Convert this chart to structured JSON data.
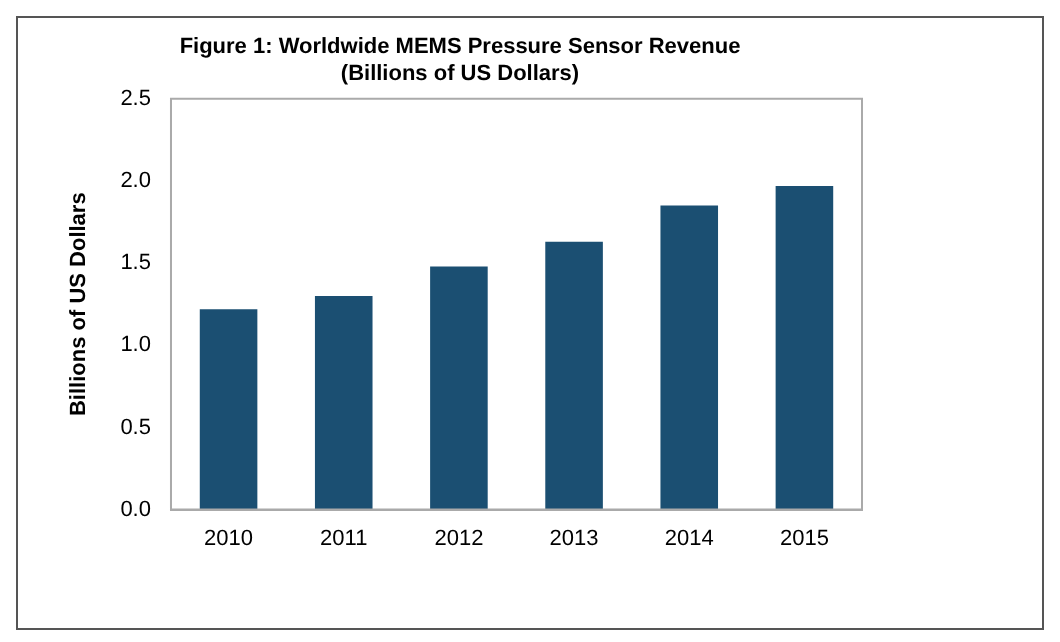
{
  "chart_data": {
    "type": "bar",
    "title": "Figure 1: Worldwide MEMS Pressure Sensor Revenue",
    "subtitle": "(Billions of US Dollars)",
    "ylabel": "Billions of US Dollars",
    "categories": [
      "2010",
      "2011",
      "2012",
      "2013",
      "2014",
      "2015"
    ],
    "values": [
      1.22,
      1.3,
      1.48,
      1.63,
      1.85,
      1.97
    ],
    "color": "#1b4f72",
    "ylim": [
      0,
      2.5
    ],
    "yticks": [
      {
        "value": 0,
        "label": "0.0"
      },
      {
        "value": 0.5,
        "label": "0.5"
      },
      {
        "value": 1,
        "label": "1.0"
      },
      {
        "value": 1.5,
        "label": "1.5"
      },
      {
        "value": 2,
        "label": "2.0"
      },
      {
        "value": 2.5,
        "label": "2.5"
      }
    ],
    "grid": false,
    "legend": false
  }
}
